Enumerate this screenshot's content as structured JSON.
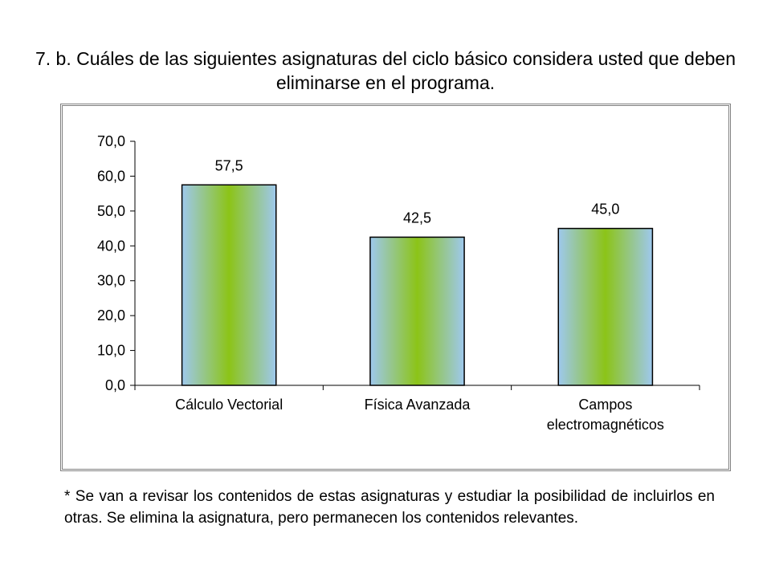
{
  "title": "7.  b.  Cuáles de las siguientes asignaturas del ciclo básico considera usted que deben eliminarse en el programa.",
  "chart_data": {
    "type": "bar",
    "title": "",
    "xlabel": "",
    "ylabel": "",
    "categories": [
      [
        "Cálculo Vectorial"
      ],
      [
        "Física Avanzada"
      ],
      [
        "Campos",
        "electromagnéticos"
      ]
    ],
    "values": [
      57.5,
      42.5,
      45.0
    ],
    "value_labels": [
      "57,5",
      "42,5",
      "45,0"
    ],
    "ylim": [
      0,
      70
    ],
    "yticks": [
      0,
      10,
      20,
      30,
      40,
      50,
      60,
      70
    ],
    "ytick_labels": [
      "0,0",
      "10,0",
      "20,0",
      "30,0",
      "40,0",
      "50,0",
      "60,0",
      "70,0"
    ],
    "grid": false,
    "legend": "none",
    "bar_colors": {
      "edge": "#9ec8ee",
      "center": "#8cc417",
      "outline": "#000000"
    }
  },
  "footnote": "*   Se van a revisar los contenidos de estas asignaturas y estudiar la posibilidad de incluirlos en otras.   Se elimina la asignatura, pero permanecen los contenidos relevantes."
}
